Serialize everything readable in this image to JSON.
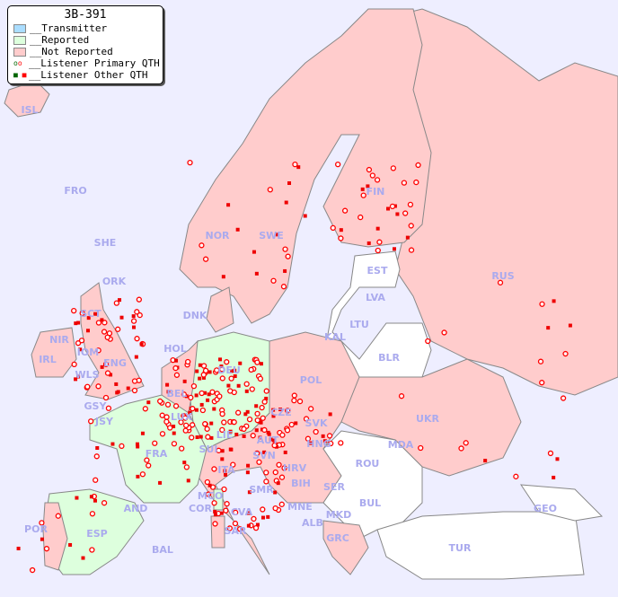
{
  "legend": {
    "title": "3B-391",
    "items": [
      {
        "label": "__Transmitter",
        "color": "#aaddff"
      },
      {
        "label": "__Reported",
        "color": "#ddffdd"
      },
      {
        "label": "__Not Reported",
        "color": "#ffcccc"
      },
      {
        "label": "__Listener Primary QTH",
        "symbol": "ring",
        "colors": [
          "#006600",
          "#ff0000"
        ]
      },
      {
        "label": "__Listener Other QTH",
        "symbol": "square",
        "colors": [
          "#006600",
          "#ff0000"
        ]
      }
    ]
  },
  "colors": {
    "sea": "#eeeeff",
    "not_reported": "#ffcccc",
    "reported": "#ddffdd",
    "no_data": "#ffffff",
    "label": "#aaaaee",
    "listener": "#ff0000"
  },
  "countries": [
    {
      "code": "ISL",
      "status": "not_reported"
    },
    {
      "code": "FRO",
      "status": "none"
    },
    {
      "code": "SHE",
      "status": "none"
    },
    {
      "code": "ORK",
      "status": "none"
    },
    {
      "code": "NOR",
      "status": "not_reported"
    },
    {
      "code": "SWE",
      "status": "not_reported"
    },
    {
      "code": "FIN",
      "status": "not_reported"
    },
    {
      "code": "EST",
      "status": "none"
    },
    {
      "code": "RUS",
      "status": "not_reported"
    },
    {
      "code": "LVA",
      "status": "not_reported"
    },
    {
      "code": "LTU",
      "status": "none"
    },
    {
      "code": "KAL",
      "status": "not_reported"
    },
    {
      "code": "BLR",
      "status": "none"
    },
    {
      "code": "DNK",
      "status": "not_reported"
    },
    {
      "code": "HOL",
      "status": "not_reported"
    },
    {
      "code": "BEL",
      "status": "not_reported"
    },
    {
      "code": "LUX",
      "status": "reported"
    },
    {
      "code": "DEU",
      "status": "reported"
    },
    {
      "code": "POL",
      "status": "not_reported"
    },
    {
      "code": "CZE",
      "status": "not_reported"
    },
    {
      "code": "SVK",
      "status": "not_reported"
    },
    {
      "code": "UKR",
      "status": "not_reported"
    },
    {
      "code": "HNG",
      "status": "not_reported"
    },
    {
      "code": "AUT",
      "status": "not_reported"
    },
    {
      "code": "LIE",
      "status": "reported"
    },
    {
      "code": "SUI",
      "status": "not_reported"
    },
    {
      "code": "FRA",
      "status": "reported"
    },
    {
      "code": "GSY",
      "status": "reported"
    },
    {
      "code": "JSY",
      "status": "reported"
    },
    {
      "code": "MDA",
      "status": "none"
    },
    {
      "code": "ROU",
      "status": "none"
    },
    {
      "code": "SVN",
      "status": "not_reported"
    },
    {
      "code": "HRV",
      "status": "not_reported"
    },
    {
      "code": "BIH",
      "status": "none"
    },
    {
      "code": "SER",
      "status": "not_reported"
    },
    {
      "code": "ITA",
      "status": "not_reported"
    },
    {
      "code": "SMR",
      "status": "not_reported"
    },
    {
      "code": "MCO",
      "status": "reported"
    },
    {
      "code": "COR",
      "status": "reported"
    },
    {
      "code": "CVA",
      "status": "not_reported"
    },
    {
      "code": "MNE",
      "status": "none"
    },
    {
      "code": "BUL",
      "status": "none"
    },
    {
      "code": "ALB",
      "status": "none"
    },
    {
      "code": "MKD",
      "status": "none"
    },
    {
      "code": "GEO",
      "status": "none"
    },
    {
      "code": "AND",
      "status": "reported"
    },
    {
      "code": "ESP",
      "status": "reported"
    },
    {
      "code": "POR",
      "status": "not_reported"
    },
    {
      "code": "BAL",
      "status": "not_reported"
    },
    {
      "code": "SAR",
      "status": "not_reported"
    },
    {
      "code": "GRC",
      "status": "not_reported"
    },
    {
      "code": "TUR",
      "status": "none"
    },
    {
      "code": "IRL",
      "status": "not_reported"
    },
    {
      "code": "NIR",
      "status": "not_reported"
    },
    {
      "code": "SCT",
      "status": "not_reported"
    },
    {
      "code": "IOM",
      "status": "not_reported"
    },
    {
      "code": "WLS",
      "status": "not_reported"
    },
    {
      "code": "ENG",
      "status": "not_reported"
    }
  ]
}
